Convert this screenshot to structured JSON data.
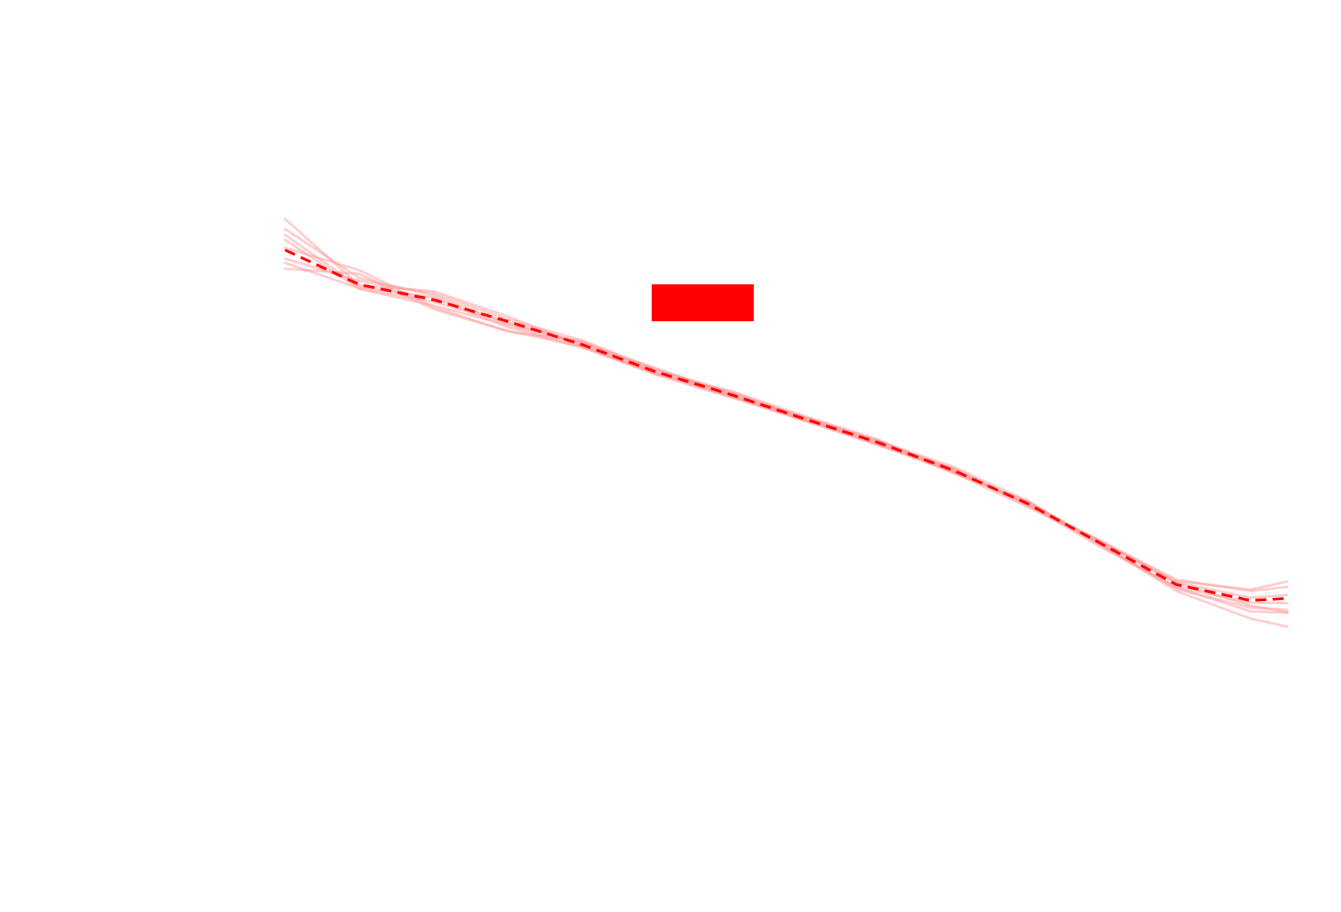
{
  "chart_data": {
    "type": "line",
    "title": "",
    "xlabel": "",
    "ylabel": "",
    "grid": false,
    "axes_visible": false,
    "legend": {
      "placement": "top-center",
      "entries": [
        {
          "label": "",
          "color": "#ff0000",
          "shape": "filled-rectangle"
        }
      ]
    },
    "xlim": [
      0,
      13.5
    ],
    "ylim": [
      0,
      100
    ],
    "x": [
      0,
      1,
      2,
      3,
      4,
      5,
      6,
      7,
      8,
      9,
      10,
      11,
      12,
      13,
      13.7
    ],
    "colors": {
      "mean": "#ff0000",
      "ensemble": "#ff9999"
    },
    "mean_series": {
      "style": "dashed",
      "values": [
        75.2,
        70.4,
        68.3,
        65.3,
        62.1,
        58.3,
        55.2,
        51.8,
        48.5,
        44.7,
        40.1,
        34.5,
        28.9,
        26.7,
        27.1
      ]
    },
    "ensemble_series": [
      {
        "values": [
          78.1,
          71.3,
          68.9,
          65.0,
          62.4,
          58.1,
          55.0,
          51.7,
          48.4,
          44.9,
          40.0,
          34.6,
          29.1,
          26.0,
          24.7
        ]
      },
      {
        "values": [
          76.6,
          69.8,
          67.5,
          64.8,
          62.0,
          58.6,
          55.3,
          52.0,
          48.6,
          44.6,
          40.2,
          34.2,
          28.5,
          25.2,
          24.9
        ]
      },
      {
        "values": [
          74.0,
          70.9,
          69.2,
          65.6,
          62.7,
          58.7,
          55.6,
          51.9,
          48.3,
          44.5,
          40.3,
          34.7,
          29.4,
          28.2,
          29.8
        ]
      },
      {
        "values": [
          72.6,
          71.9,
          67.0,
          64.0,
          61.8,
          57.9,
          54.8,
          51.6,
          48.7,
          45.2,
          40.5,
          34.3,
          28.0,
          24.2,
          22.6
        ]
      },
      {
        "values": [
          73.4,
          69.9,
          68.0,
          65.2,
          62.3,
          58.8,
          55.1,
          51.5,
          48.2,
          44.4,
          39.6,
          34.8,
          29.6,
          28.0,
          28.8
        ]
      },
      {
        "values": [
          77.3,
          70.1,
          68.6,
          64.5,
          61.7,
          58.2,
          54.9,
          52.1,
          48.8,
          44.8,
          39.9,
          34.0,
          28.6,
          26.4,
          26.3
        ]
      },
      {
        "values": [
          75.5,
          72.4,
          67.3,
          63.9,
          62.6,
          58.4,
          55.4,
          51.8,
          48.1,
          45.0,
          39.8,
          34.9,
          29.2,
          27.1,
          27.6
        ]
      },
      {
        "values": [
          79.5,
          70.3,
          69.5,
          66.0,
          61.9,
          58.0,
          55.7,
          52.2,
          48.9,
          44.3,
          40.4,
          34.4,
          28.3,
          25.7,
          25.3
        ]
      }
    ]
  }
}
